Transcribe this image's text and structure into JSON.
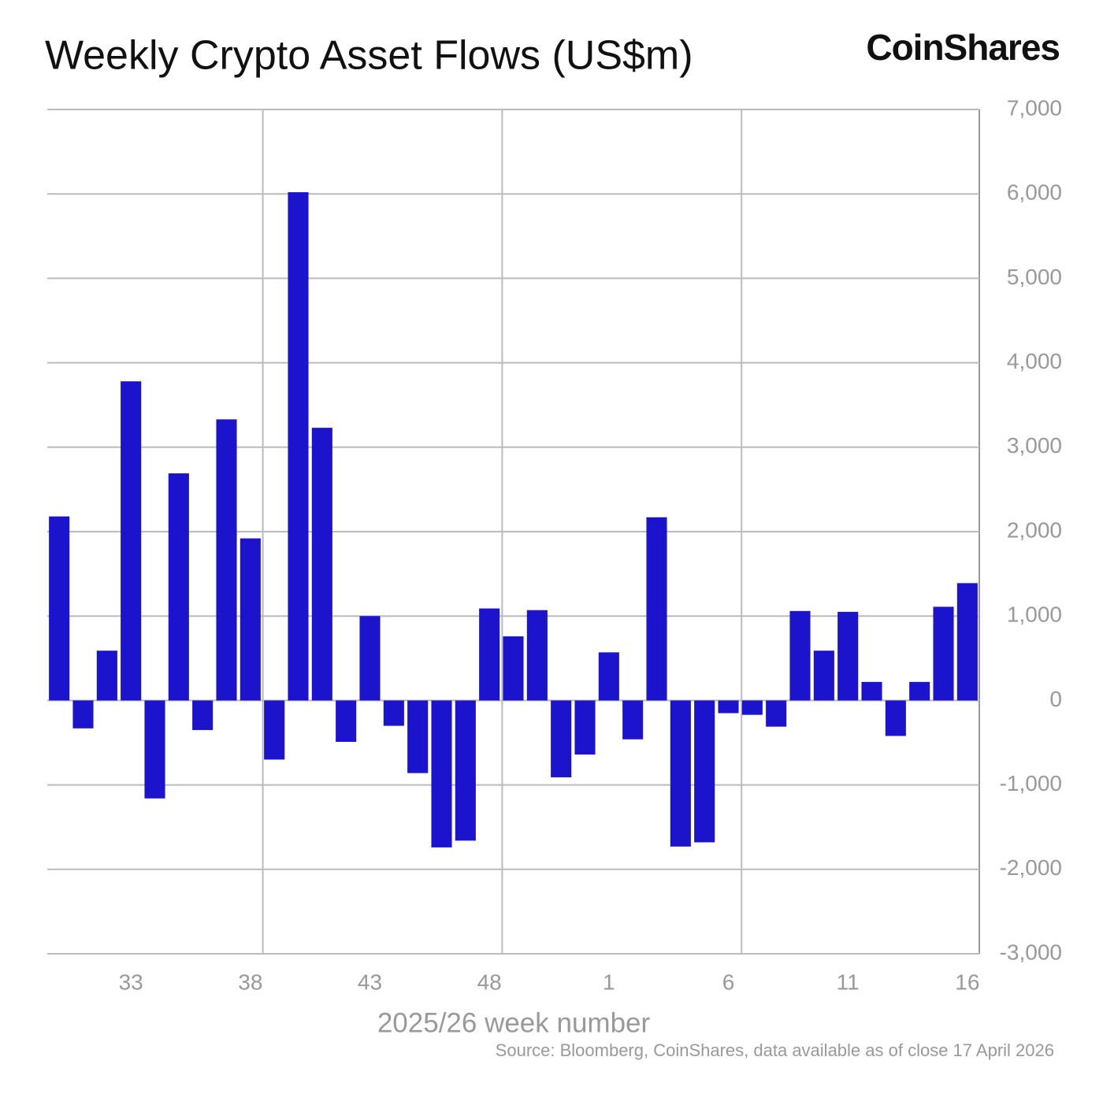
{
  "chart_data": {
    "type": "bar",
    "title": "Weekly Crypto Asset Flows (US$m)",
    "brand": "CoinShares",
    "xlabel": "2025/26 week number",
    "source": "Source: Bloomberg, CoinShares, data available as of close 17 April 2026",
    "categories": [
      null,
      null,
      null,
      "33",
      null,
      null,
      null,
      null,
      "38",
      null,
      null,
      null,
      null,
      "43",
      null,
      null,
      null,
      null,
      "48",
      null,
      null,
      null,
      null,
      "1",
      null,
      null,
      null,
      null,
      "6",
      null,
      null,
      null,
      null,
      "11",
      null,
      null,
      null,
      null,
      "16"
    ],
    "values": [
      2180,
      -330,
      590,
      3780,
      -1160,
      2690,
      -350,
      3330,
      1920,
      -700,
      6020,
      3230,
      -490,
      1000,
      -300,
      -860,
      -1740,
      -1660,
      1090,
      760,
      1070,
      -910,
      -640,
      570,
      -460,
      2170,
      -1730,
      -1680,
      -150,
      -170,
      -310,
      1060,
      590,
      1050,
      220,
      -420,
      220,
      1110,
      1390
    ],
    "color": "#1c14cc",
    "ylim": [
      -3000,
      7000
    ],
    "yticks": [
      {
        "value": -3000,
        "label": "-3,000"
      },
      {
        "value": -2000,
        "label": "-2,000"
      },
      {
        "value": -1000,
        "label": "-1,000"
      },
      0,
      {
        "value": 1000,
        "label": "1,000"
      },
      {
        "value": 2000,
        "label": "2,000"
      },
      {
        "value": 3000,
        "label": "3,000"
      },
      {
        "value": 4000,
        "label": "4,000"
      },
      {
        "value": 5000,
        "label": "5,000"
      },
      {
        "value": 6000,
        "label": "6,000"
      },
      {
        "value": 7000,
        "label": "7,000"
      }
    ],
    "grid": true
  }
}
